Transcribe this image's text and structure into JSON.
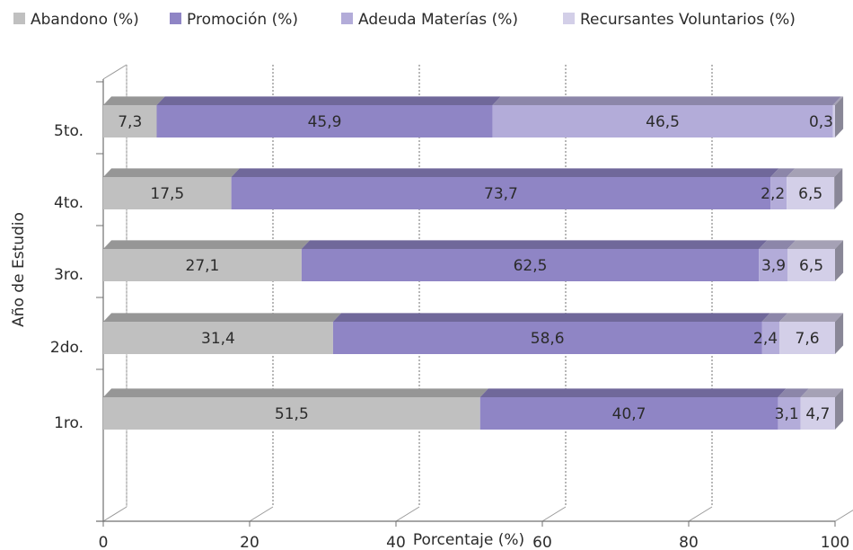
{
  "chart_data": {
    "type": "bar",
    "orientation": "horizontal",
    "stacked": true,
    "style": "3d",
    "categories": [
      "1ro.",
      "2do.",
      "3ro.",
      "4to.",
      "5to."
    ],
    "series": [
      {
        "name": "Abandono (%)",
        "color": "#c0c0c0",
        "values": [
          51.5,
          31.4,
          27.1,
          17.5,
          7.3
        ],
        "labels": [
          "51,5",
          "31,4",
          "27,1",
          "17,5",
          "7,3"
        ]
      },
      {
        "name": "Promoción (%)",
        "color": "#8f85c5",
        "values": [
          40.7,
          58.6,
          62.5,
          73.7,
          45.9
        ],
        "labels": [
          "40,7",
          "58,6",
          "62,5",
          "73,7",
          "45,9"
        ]
      },
      {
        "name": "Adeuda Materías (%)",
        "color": "#b3acd9",
        "values": [
          3.1,
          2.4,
          3.9,
          2.2,
          46.5
        ],
        "labels": [
          "3,1",
          "2,4",
          "3,9",
          "2,2",
          "46,5"
        ]
      },
      {
        "name": "Recursantes Voluntarios (%)",
        "color": "#d3cfe8",
        "values": [
          4.7,
          7.6,
          6.5,
          6.5,
          0.3
        ],
        "labels": [
          "4,7",
          "7,6",
          "6,5",
          "6,5",
          "0,3"
        ]
      }
    ],
    "xlabel": "Porcentaje (%)",
    "ylabel": "Año de Estudio",
    "xlim": [
      0,
      100
    ],
    "xticks": [
      "0",
      "20",
      "40",
      "60",
      "80",
      "100"
    ],
    "legend_position": "top",
    "grid": true
  }
}
